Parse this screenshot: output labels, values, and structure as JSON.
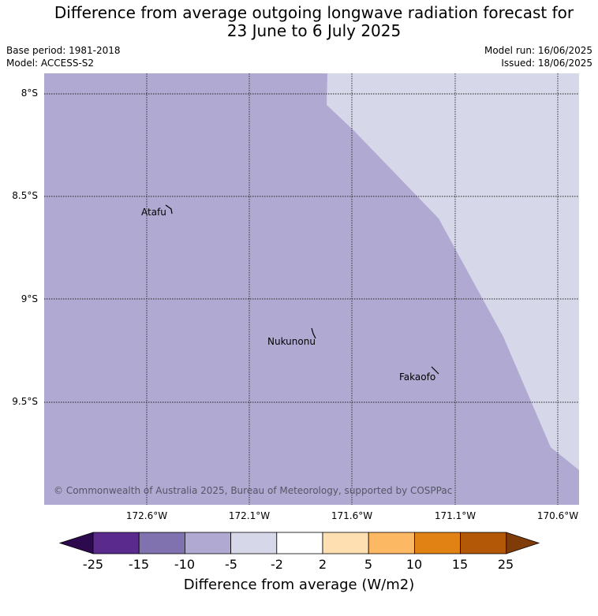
{
  "title_line1": "Difference from average outgoing longwave radiation forecast for",
  "title_line2": "23 June to 6 July 2025",
  "meta": {
    "base_period": "Base period: 1981-2018",
    "model": "Model: ACCESS-S2",
    "model_run": "Model run: 16/06/2025",
    "issued": "Issued: 18/06/2025"
  },
  "map": {
    "lat_labels": [
      "8°S",
      "8.5°S",
      "9°S",
      "9.5°S"
    ],
    "lon_labels": [
      "172.6°W",
      "172.1°W",
      "171.6°W",
      "171.1°W",
      "170.6°W"
    ],
    "places": [
      "Atafu",
      "Nukunonu",
      "Fakaofo"
    ],
    "copyright": "© Commonwealth of Australia 2025, Bureau of Meteorology, supported by COSPPac",
    "fill_main": "#b0aad2",
    "fill_light": "#d7d7ea"
  },
  "colorbar": {
    "ticks": [
      "-25",
      "-15",
      "-10",
      "-5",
      "-2",
      "2",
      "5",
      "10",
      "15",
      "25"
    ],
    "colors": [
      "#2d0a4e",
      "#5a2a8c",
      "#8072ae",
      "#b0aad2",
      "#d7d7ea",
      "#ffffff",
      "#fedfb1",
      "#fdb863",
      "#e08214",
      "#b35806",
      "#7f3b08"
    ],
    "label": "Difference from average (W/m2)"
  }
}
